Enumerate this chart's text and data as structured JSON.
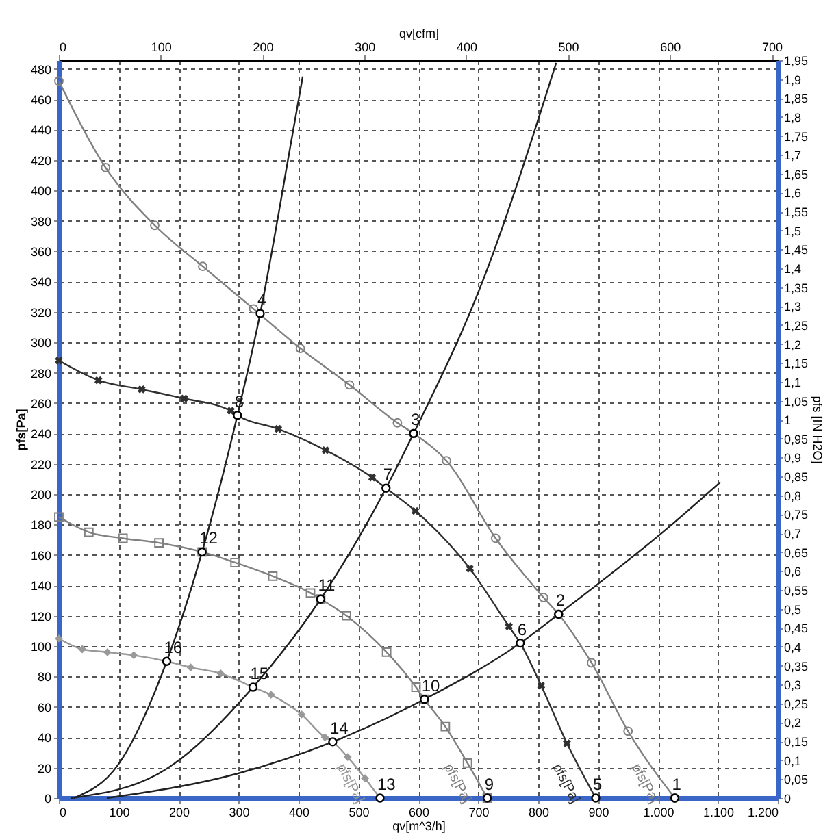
{
  "chart_data": {
    "type": "line",
    "xlabel": "qv[m^3/h]",
    "ylabel": "pfs[Pa]",
    "x2label": "qv[cfm]",
    "y2label": "pfs [IN H2O]",
    "xlim": [
      0,
      1200
    ],
    "ylim": [
      0,
      485.7
    ],
    "x2lim": [
      0,
      706
    ],
    "y2lim": [
      0,
      1.95
    ],
    "xticks": [
      0,
      100,
      200,
      300,
      400,
      500,
      600,
      700,
      800,
      900,
      {
        "value": 1000,
        "label": "1.000"
      },
      {
        "value": 1100,
        "label": "1.100"
      },
      {
        "value": 1200,
        "label": "1.200"
      }
    ],
    "yticks": [
      0,
      20,
      40,
      60,
      80,
      100,
      120,
      140,
      160,
      180,
      200,
      220,
      240,
      260,
      280,
      300,
      320,
      340,
      360,
      380,
      400,
      420,
      440,
      460,
      480
    ],
    "x2ticks": [
      0,
      100,
      200,
      300,
      400,
      500,
      600,
      700
    ],
    "y2ticks": [
      0,
      {
        "value": 0.05,
        "label": "0,05"
      },
      {
        "value": 0.1,
        "label": "0,1"
      },
      {
        "value": 0.15,
        "label": "0,15"
      },
      {
        "value": 0.2,
        "label": "0,2"
      },
      {
        "value": 0.25,
        "label": "0,25"
      },
      {
        "value": 0.3,
        "label": "0,3"
      },
      {
        "value": 0.35,
        "label": "0,35"
      },
      {
        "value": 0.4,
        "label": "0,4"
      },
      {
        "value": 0.45,
        "label": "0,45"
      },
      {
        "value": 0.5,
        "label": "0,5"
      },
      {
        "value": 0.55,
        "label": "0,55"
      },
      {
        "value": 0.6,
        "label": "0,6"
      },
      {
        "value": 0.65,
        "label": "0,65"
      },
      {
        "value": 0.7,
        "label": "0,7"
      },
      {
        "value": 0.75,
        "label": "0,75"
      },
      {
        "value": 0.8,
        "label": "0,8"
      },
      {
        "value": 0.85,
        "label": "0,85"
      },
      {
        "value": 0.9,
        "label": "0,9"
      },
      {
        "value": 0.95,
        "label": "0,95"
      },
      1,
      {
        "value": 1.05,
        "label": "1,05"
      },
      {
        "value": 1.1,
        "label": "1,1"
      },
      {
        "value": 1.15,
        "label": "1,15"
      },
      {
        "value": 1.2,
        "label": "1,2"
      },
      {
        "value": 1.25,
        "label": "1,25"
      },
      {
        "value": 1.3,
        "label": "1,3"
      },
      {
        "value": 1.35,
        "label": "1,35"
      },
      {
        "value": 1.4,
        "label": "1,4"
      },
      {
        "value": 1.45,
        "label": "1,45"
      },
      {
        "value": 1.5,
        "label": "1,5"
      },
      {
        "value": 1.55,
        "label": "1,55"
      },
      {
        "value": 1.6,
        "label": "1,6"
      },
      {
        "value": 1.65,
        "label": "1,65"
      },
      {
        "value": 1.7,
        "label": "1,7"
      },
      {
        "value": 1.75,
        "label": "1,75"
      },
      {
        "value": 1.8,
        "label": "1,8"
      },
      {
        "value": 1.85,
        "label": "1,85"
      },
      {
        "value": 1.9,
        "label": "1,9"
      },
      {
        "value": 1.95,
        "label": "1,95"
      }
    ],
    "grid": true,
    "series": [
      {
        "name": "pfs[Pa]",
        "color": "#808080",
        "marker": "circle",
        "x": [
          0,
          78,
          160,
          240,
          325,
          403,
          485,
          565,
          592,
          647,
          729,
          809,
          834,
          889,
          950,
          1028
        ],
        "values": [
          472,
          415,
          377,
          350,
          322,
          296,
          272,
          247,
          240,
          222,
          171,
          132,
          121,
          89,
          44,
          0
        ]
      },
      {
        "name": "pfs[Pa]",
        "color": "#303030",
        "marker": "cross",
        "x": [
          0,
          66,
          138,
          209,
          287,
          298,
          366,
          445,
          523,
          546,
          595,
          686,
          751,
          770,
          805,
          848,
          896
        ],
        "values": [
          288,
          275,
          269,
          263,
          255,
          252,
          243,
          229,
          211,
          204,
          189,
          151,
          113,
          102,
          74,
          36,
          0
        ]
      },
      {
        "name": "pfs[Pa]",
        "color": "#808080",
        "marker": "square",
        "x": [
          0,
          50,
          107,
          167,
          239,
          294,
          357,
          420,
          437,
          480,
          547,
          596,
          610,
          645,
          682,
          715
        ],
        "values": [
          185,
          175,
          171,
          168,
          162,
          155,
          146,
          135,
          131,
          120,
          96,
          73,
          65,
          47,
          23,
          0
        ]
      },
      {
        "name": "pfs[Pa]",
        "color": "#999999",
        "marker": "diamond",
        "x": [
          0,
          39,
          81,
          125,
          180,
          220,
          270,
          324,
          354,
          405,
          444,
          457,
          482,
          511,
          536
        ],
        "values": [
          105,
          98,
          96,
          94,
          90,
          86,
          82,
          73,
          68,
          55,
          40,
          37,
          27,
          13,
          0
        ]
      },
      {
        "color": "#202020",
        "marker": "none",
        "x": [
          25,
          99,
          180,
          239,
          298,
          336,
          389,
          407
        ],
        "values": [
          0,
          22,
          90,
          162,
          252,
          319,
          435,
          475
        ]
      },
      {
        "color": "#202020",
        "marker": "none",
        "x": [
          20,
          166,
          324,
          437,
          546,
          592,
          706,
          830
        ],
        "values": [
          0,
          16,
          73,
          131,
          204,
          240,
          339,
          484
        ]
      },
      {
        "color": "#202020",
        "marker": "none",
        "x": [
          80,
          297,
          457,
          610,
          770,
          834,
          1017,
          1104
        ],
        "values": [
          0,
          16,
          37,
          65,
          102,
          121,
          178,
          208
        ]
      },
      {
        "type": "scatter",
        "color": "#000000",
        "marker": "circle",
        "x": [
          1028,
          834,
          592,
          336,
          896,
          770,
          546,
          298,
          715,
          610,
          437,
          239,
          536,
          457,
          324,
          180
        ],
        "values": [
          0,
          121,
          240,
          319,
          0,
          102,
          204,
          252,
          0,
          65,
          131,
          162,
          0,
          37,
          73,
          90
        ]
      }
    ],
    "annotations": [
      {
        "text": "1",
        "x": 1028,
        "y": 0
      },
      {
        "text": "2",
        "x": 834,
        "y": 121
      },
      {
        "text": "3",
        "x": 592,
        "y": 240
      },
      {
        "text": "4",
        "x": 336,
        "y": 319
      },
      {
        "text": "5",
        "x": 896,
        "y": 0
      },
      {
        "text": "6",
        "x": 770,
        "y": 102
      },
      {
        "text": "7",
        "x": 546,
        "y": 204
      },
      {
        "text": "8",
        "x": 298,
        "y": 252
      },
      {
        "text": "9",
        "x": 715,
        "y": 0
      },
      {
        "text": "10",
        "x": 610,
        "y": 65
      },
      {
        "text": "11",
        "x": 437,
        "y": 131
      },
      {
        "text": "12",
        "x": 239,
        "y": 162
      },
      {
        "text": "13",
        "x": 536,
        "y": 0
      },
      {
        "text": "14",
        "x": 457,
        "y": 37
      },
      {
        "text": "15",
        "x": 324,
        "y": 73
      },
      {
        "text": "16",
        "x": 180,
        "y": 90
      }
    ]
  }
}
